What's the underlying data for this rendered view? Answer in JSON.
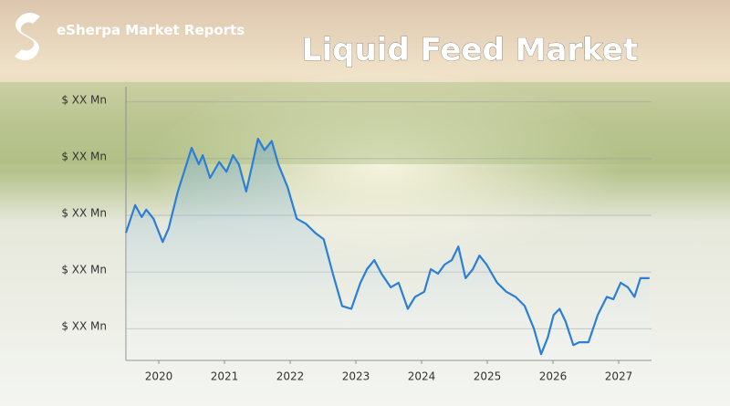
{
  "brand": "eSherpa Market Reports",
  "chart_data": {
    "type": "line",
    "title": "Liquid Feed Market",
    "x": [
      2019.5,
      2019.64,
      2019.74,
      2019.81,
      2019.92,
      2020.06,
      2020.15,
      2020.29,
      2020.4,
      2020.5,
      2020.61,
      2020.67,
      2020.78,
      2020.92,
      2021.03,
      2021.13,
      2021.22,
      2021.33,
      2021.44,
      2021.51,
      2021.61,
      2021.72,
      2021.82,
      2021.96,
      2022.1,
      2022.24,
      2022.38,
      2022.51,
      2022.65,
      2022.79,
      2022.93,
      2023.07,
      2023.17,
      2023.28,
      2023.39,
      2023.53,
      2023.65,
      2023.79,
      2023.9,
      2024.04,
      2024.14,
      2024.25,
      2024.35,
      2024.46,
      2024.56,
      2024.67,
      2024.78,
      2024.88,
      2024.99,
      2025.15,
      2025.29,
      2025.43,
      2025.57,
      2025.71,
      2025.82,
      2025.92,
      2026.01,
      2026.1,
      2026.19,
      2026.31,
      2026.4,
      2026.54,
      2026.68,
      2026.82,
      2026.92,
      2027.03,
      2027.14,
      2027.24,
      2027.33,
      2027.47
    ],
    "series": [
      {
        "color": "#2b7fd6",
        "values": [
          2.69,
          3.18,
          2.97,
          3.1,
          2.94,
          2.53,
          2.77,
          3.42,
          3.82,
          4.19,
          3.9,
          4.06,
          3.66,
          3.94,
          3.77,
          4.06,
          3.9,
          3.42,
          3.98,
          4.35,
          4.15,
          4.31,
          3.9,
          3.5,
          2.94,
          2.85,
          2.69,
          2.58,
          1.97,
          1.4,
          1.35,
          1.81,
          2.05,
          2.21,
          1.97,
          1.73,
          1.81,
          1.35,
          1.56,
          1.65,
          2.05,
          1.97,
          2.13,
          2.21,
          2.45,
          1.89,
          2.05,
          2.29,
          2.13,
          1.81,
          1.65,
          1.56,
          1.4,
          1.0,
          0.55,
          0.84,
          1.24,
          1.35,
          1.13,
          0.71,
          0.76,
          0.76,
          1.24,
          1.56,
          1.52,
          1.81,
          1.73,
          1.56,
          1.89,
          1.89
        ]
      }
    ],
    "xlim": [
      2019.5,
      2027.5
    ],
    "xticks": [
      2020,
      2021,
      2022,
      2023,
      2024,
      2025,
      2026,
      2027
    ],
    "ylim": [
      0.44,
      5.27
    ],
    "yticks": [
      {
        "value": 1,
        "label": "$ XX Mn"
      },
      {
        "value": 2,
        "label": "$ XX Mn"
      },
      {
        "value": 3,
        "label": "$ XX Mn"
      },
      {
        "value": 4,
        "label": "$ XX Mn"
      },
      {
        "value": 5,
        "label": "$ XX Mn"
      }
    ],
    "grid": true
  }
}
